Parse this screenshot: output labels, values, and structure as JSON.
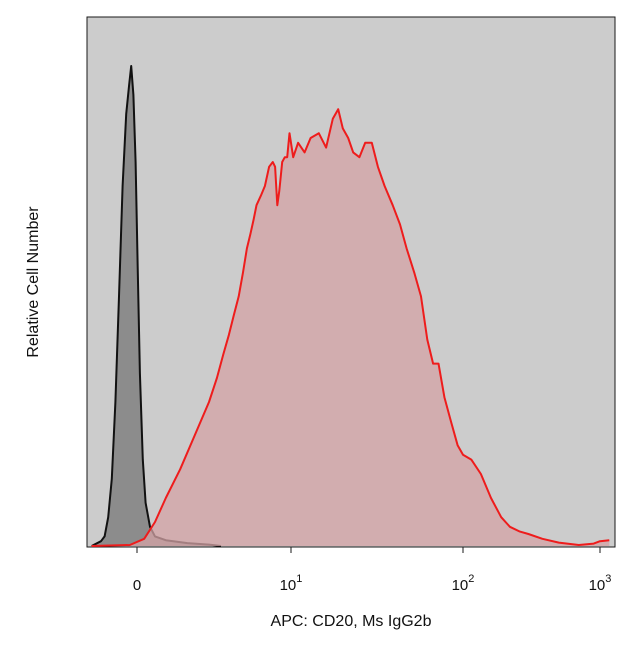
{
  "chart_data": {
    "type": "area",
    "xlabel": "APC: CD20, Ms IgG2b",
    "ylabel": "Relative Cell Number",
    "x_scale": "biexponential",
    "x_ticks": [
      {
        "value": 0,
        "base": "0",
        "exp": ""
      },
      {
        "value": 10,
        "base": "10",
        "exp": "1"
      },
      {
        "value": 100,
        "base": "10",
        "exp": "2"
      },
      {
        "value": 1000,
        "base": "10",
        "exp": "3"
      }
    ],
    "y_ticks": "none",
    "y_range": [
      0,
      100
    ],
    "grid": false,
    "legend": "none",
    "plot_background": "#cccccc",
    "series": [
      {
        "color": "#111111",
        "fill": "#808080",
        "points": [
          [
            -0.63,
            0
          ],
          [
            -0.5,
            1
          ],
          [
            -0.45,
            2
          ],
          [
            -0.4,
            6
          ],
          [
            -0.35,
            14
          ],
          [
            -0.3,
            30
          ],
          [
            -0.25,
            52
          ],
          [
            -0.2,
            75
          ],
          [
            -0.15,
            90
          ],
          [
            -0.11,
            96
          ],
          [
            -0.08,
            100
          ],
          [
            -0.05,
            94
          ],
          [
            -0.02,
            80
          ],
          [
            0.01,
            58
          ],
          [
            0.04,
            36
          ],
          [
            0.08,
            18
          ],
          [
            0.12,
            9
          ],
          [
            0.18,
            4
          ],
          [
            0.25,
            2
          ],
          [
            0.4,
            1.2
          ],
          [
            0.7,
            0.6
          ],
          [
            1.0,
            0.3
          ],
          [
            1.4,
            0
          ]
        ]
      },
      {
        "color": "#ee1c1c",
        "fill": "#d4a3a6",
        "points": [
          [
            -0.63,
            0
          ],
          [
            -0.1,
            0.2
          ],
          [
            0.1,
            1.5
          ],
          [
            0.25,
            5
          ],
          [
            0.4,
            10
          ],
          [
            0.6,
            16
          ],
          [
            0.8,
            23
          ],
          [
            1.0,
            30
          ],
          [
            1.25,
            35
          ],
          [
            1.5,
            40
          ],
          [
            1.75,
            44
          ],
          [
            2.0,
            48
          ],
          [
            2.3,
            52
          ],
          [
            2.6,
            57
          ],
          [
            2.9,
            62
          ],
          [
            3.2,
            65
          ],
          [
            3.5,
            68
          ],
          [
            3.8,
            71
          ],
          [
            4.3,
            73
          ],
          [
            4.8,
            75
          ],
          [
            5.4,
            79
          ],
          [
            6.0,
            80
          ],
          [
            6.4,
            79
          ],
          [
            6.8,
            71
          ],
          [
            7.2,
            74
          ],
          [
            7.8,
            80
          ],
          [
            8.4,
            81
          ],
          [
            9.0,
            81
          ],
          [
            9.6,
            86
          ],
          [
            10.3,
            81
          ],
          [
            11.0,
            84
          ],
          [
            12.0,
            82
          ],
          [
            13.0,
            85
          ],
          [
            14.5,
            86
          ],
          [
            16.0,
            83
          ],
          [
            17.5,
            89
          ],
          [
            18.8,
            91
          ],
          [
            20.0,
            87
          ],
          [
            21.5,
            85
          ],
          [
            23.0,
            82
          ],
          [
            25.0,
            81
          ],
          [
            27.0,
            84
          ],
          [
            29.5,
            84
          ],
          [
            32.0,
            79
          ],
          [
            35.0,
            75
          ],
          [
            39.0,
            71
          ],
          [
            43.0,
            67
          ],
          [
            47.0,
            62
          ],
          [
            52.0,
            57
          ],
          [
            57.0,
            52
          ],
          [
            62.0,
            43
          ],
          [
            67.0,
            38
          ],
          [
            72.0,
            38
          ],
          [
            78.0,
            31
          ],
          [
            85.0,
            26
          ],
          [
            93.0,
            21
          ],
          [
            100.0,
            19
          ],
          [
            115.0,
            18
          ],
          [
            135.0,
            15
          ],
          [
            160.0,
            10
          ],
          [
            190.0,
            6
          ],
          [
            220.0,
            4
          ],
          [
            260.0,
            3
          ],
          [
            300.0,
            2.5
          ],
          [
            380.0,
            1.5
          ],
          [
            500.0,
            0.7
          ],
          [
            700.0,
            0.2
          ],
          [
            900.0,
            0.5
          ],
          [
            1000.0,
            1
          ],
          [
            1170.0,
            1.2
          ]
        ]
      }
    ]
  }
}
